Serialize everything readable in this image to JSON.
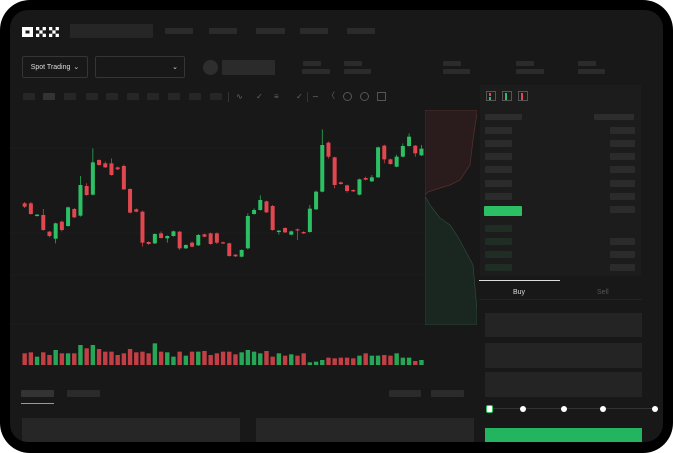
{
  "brand": {
    "logo_text": "OKX"
  },
  "toolbar": {
    "market_select_label": "Spot Trading",
    "pair_select_value": ""
  },
  "toolbar_icons": [
    "wave-icon",
    "chevron-down-icon",
    "candle-type-icon",
    "chevron-down-icon",
    "line-icon",
    "ruler-icon",
    "camera-icon",
    "target-icon",
    "fullscreen-icon"
  ],
  "orderbook": {
    "view_icons": [
      "orderbook-both-icon",
      "orderbook-bids-icon",
      "orderbook-asks-icon"
    ]
  },
  "trade_form": {
    "tabs": [
      "Buy",
      "Sell"
    ],
    "active_tab": "Buy",
    "slider_stops": [
      0,
      25,
      50,
      75,
      100
    ],
    "slider_value": 0
  },
  "colors": {
    "up": "#2cbf63",
    "down": "#e0474f",
    "background": "#181818",
    "placeholder": "#2b2b2b"
  },
  "chart_data": {
    "type": "candlestick",
    "ohlc": [
      [
        220,
        224,
        206,
        210
      ],
      [
        220,
        224,
        186,
        188
      ],
      [
        182,
        188,
        180,
        186
      ],
      [
        185,
        203,
        138,
        140
      ],
      [
        135,
        137,
        118,
        122
      ],
      [
        114,
        162,
        100,
        160
      ],
      [
        165,
        168,
        136,
        140
      ],
      [
        152,
        210,
        150,
        208
      ],
      [
        203,
        206,
        176,
        178
      ],
      [
        183,
        302,
        180,
        275
      ],
      [
        272,
        280,
        243,
        245
      ],
      [
        246,
        385,
        244,
        343
      ],
      [
        350,
        352,
        333,
        335
      ],
      [
        340,
        345,
        326,
        328
      ],
      [
        340,
        355,
        303,
        305
      ],
      [
        328,
        330,
        320,
        322
      ],
      [
        332,
        336,
        260,
        262
      ],
      [
        263,
        265,
        190,
        192
      ],
      [
        202,
        205,
        193,
        195
      ],
      [
        195,
        198,
        90,
        102
      ],
      [
        104,
        106,
        96,
        98
      ],
      [
        100,
        130,
        98,
        128
      ],
      [
        130,
        136,
        114,
        116
      ],
      [
        115,
        124,
        102,
        122
      ],
      [
        122,
        138,
        120,
        136
      ],
      [
        135,
        137,
        80,
        85
      ],
      [
        85,
        97,
        83,
        95
      ],
      [
        102,
        106,
        88,
        90
      ],
      [
        94,
        128,
        92,
        125
      ],
      [
        127,
        129,
        118,
        120
      ],
      [
        130,
        132,
        96,
        98
      ],
      [
        130,
        132,
        98,
        102
      ],
      [
        103,
        105,
        98,
        100
      ],
      [
        100,
        102,
        60,
        62
      ],
      [
        66,
        68,
        59,
        61
      ],
      [
        60,
        82,
        58,
        80
      ],
      [
        85,
        190,
        82,
        182
      ],
      [
        188,
        205,
        186,
        200
      ],
      [
        200,
        244,
        198,
        230
      ],
      [
        226,
        228,
        191,
        193
      ],
      [
        212,
        215,
        138,
        140
      ],
      [
        134,
        140,
        126,
        138
      ],
      [
        146,
        148,
        131,
        133
      ],
      [
        126,
        138,
        124,
        136
      ],
      [
        142,
        144,
        110,
        140
      ],
      [
        134,
        136,
        128,
        130
      ],
      [
        134,
        215,
        132,
        204
      ],
      [
        202,
        258,
        200,
        255
      ],
      [
        255,
        442,
        253,
        395
      ],
      [
        402,
        405,
        354,
        360
      ],
      [
        358,
        360,
        265,
        275
      ],
      [
        283,
        285,
        276,
        278
      ],
      [
        274,
        276,
        252,
        257
      ],
      [
        260,
        262,
        254,
        256
      ],
      [
        246,
        294,
        244,
        292
      ],
      [
        296,
        300,
        289,
        291
      ],
      [
        286,
        305,
        284,
        298
      ],
      [
        298,
        390,
        296,
        388
      ],
      [
        393,
        396,
        340,
        352
      ],
      [
        352,
        354,
        336,
        338
      ],
      [
        330,
        366,
        328,
        360
      ],
      [
        360,
        400,
        358,
        392
      ],
      [
        392,
        430,
        390,
        420
      ],
      [
        393,
        395,
        360,
        370
      ],
      [
        364,
        395,
        362,
        384
      ]
    ],
    "volume": [
      35,
      38,
      25,
      38,
      30,
      45,
      35,
      35,
      35,
      60,
      50,
      60,
      48,
      40,
      40,
      30,
      35,
      48,
      38,
      40,
      35,
      65,
      40,
      38,
      25,
      40,
      28,
      40,
      40,
      42,
      30,
      35,
      40,
      40,
      32,
      38,
      45,
      40,
      35,
      42,
      25,
      35,
      28,
      32,
      28,
      35,
      8,
      10,
      15,
      22,
      20,
      22,
      22,
      20,
      28,
      35,
      28,
      28,
      30,
      28,
      35,
      22,
      22,
      12,
      15
    ]
  }
}
